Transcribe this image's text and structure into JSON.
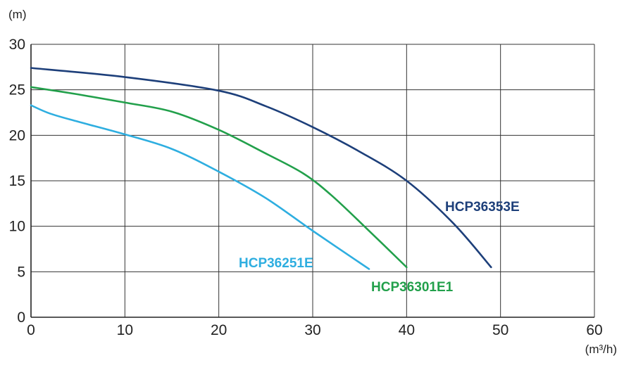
{
  "chart_data": {
    "type": "line",
    "ylabel": "(m)",
    "xlabel": "(m³/h)",
    "xlim": [
      0,
      60
    ],
    "ylim": [
      0,
      30
    ],
    "xticks": [
      0,
      10,
      20,
      30,
      40,
      50,
      60
    ],
    "yticks": [
      0,
      5,
      10,
      15,
      20,
      25,
      30
    ],
    "grid": true,
    "series": [
      {
        "name": "HCP36353E",
        "color": "#1d3f7a",
        "x": [
          0,
          10,
          20,
          25,
          30,
          35,
          40,
          45,
          49
        ],
        "y": [
          27.4,
          26.4,
          24.9,
          23.2,
          20.9,
          18.2,
          15.0,
          10.3,
          5.5
        ]
      },
      {
        "name": "HCP36301E1",
        "color": "#22a04b",
        "x": [
          0,
          5,
          10,
          15,
          20,
          25,
          29,
          32,
          36,
          40
        ],
        "y": [
          25.3,
          24.5,
          23.6,
          22.6,
          20.6,
          18.0,
          15.8,
          13.4,
          9.5,
          5.5
        ]
      },
      {
        "name": "HCP36251E",
        "color": "#2eaee0",
        "x": [
          0,
          2,
          5,
          10,
          15,
          20,
          25,
          30,
          36
        ],
        "y": [
          23.3,
          22.4,
          21.5,
          20.1,
          18.5,
          16.0,
          13.1,
          9.5,
          5.3
        ]
      }
    ]
  }
}
